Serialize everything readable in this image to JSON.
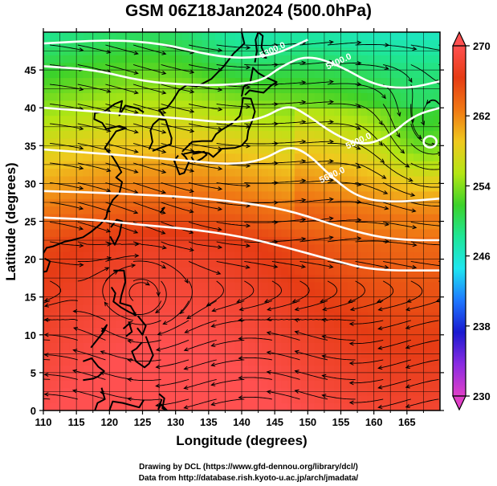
{
  "title": "GSM 06Z18Jan2024 (500.0hPa)",
  "xlabel": "Longitude (degrees)",
  "ylabel": "Latitude  (degrees)",
  "credit_line1": "Drawing by DCL (https://www.gfd-dennou.org/library/dcl/)",
  "credit_line2": "Data from http://database.rish.kyoto-u.ac.jp/arch/jmadata/",
  "chart_data": {
    "type": "heatmap",
    "field": "temperature with geopotential height contours and wind streamlines",
    "xlim": [
      110,
      170
    ],
    "ylim": [
      0,
      50
    ],
    "x_ticks": [
      "110",
      "115",
      "120",
      "125",
      "130",
      "135",
      "140",
      "145",
      "150",
      "155",
      "160",
      "165"
    ],
    "y_ticks": [
      "0",
      "5",
      "10",
      "15",
      "20",
      "25",
      "30",
      "35",
      "40",
      "45"
    ],
    "colorbar": {
      "range": [
        230,
        270
      ],
      "ticks": [
        "230",
        "238",
        "246",
        "254",
        "262",
        "270"
      ],
      "colors": [
        "#e040c8",
        "#8a2be2",
        "#1a1ad0",
        "#1e78ff",
        "#1ee6f0",
        "#1ee696",
        "#3cd22a",
        "#b4e614",
        "#f0c81e",
        "#f07814",
        "#e63c14",
        "#ff5050"
      ]
    },
    "contours": [
      {
        "label": "5300.0",
        "points": [
          [
            110,
            48.5
          ],
          [
            120,
            49
          ],
          [
            128,
            48.5
          ],
          [
            135,
            47
          ],
          [
            140,
            46.5
          ],
          [
            145,
            47
          ],
          [
            150,
            49
          ]
        ]
      },
      {
        "label": "5400.0",
        "points": [
          [
            110,
            45.5
          ],
          [
            118,
            45
          ],
          [
            125,
            43.5
          ],
          [
            132,
            43
          ],
          [
            138,
            43
          ],
          [
            143,
            43.5
          ],
          [
            146,
            45.5
          ],
          [
            150,
            47
          ],
          [
            155,
            45.5
          ],
          [
            160,
            43
          ],
          [
            165,
            42.5
          ],
          [
            170,
            43.5
          ]
        ]
      },
      {
        "label": "5500.0",
        "points": [
          [
            110,
            40
          ],
          [
            118,
            39.5
          ],
          [
            125,
            39
          ],
          [
            132,
            38.5
          ],
          [
            138,
            38
          ],
          [
            143,
            38.5
          ],
          [
            147,
            40.5
          ],
          [
            150,
            39
          ],
          [
            154,
            36.5
          ],
          [
            158,
            35
          ],
          [
            162,
            36
          ],
          [
            166,
            39
          ],
          [
            170,
            40
          ]
        ]
      },
      {
        "label": "5600.0",
        "points": [
          [
            110,
            34.5
          ],
          [
            118,
            34
          ],
          [
            125,
            33.5
          ],
          [
            132,
            33
          ],
          [
            138,
            32.5
          ],
          [
            143,
            33
          ],
          [
            147,
            35
          ],
          [
            150,
            34
          ],
          [
            154,
            30.5
          ],
          [
            158,
            28
          ],
          [
            163,
            27.5
          ],
          [
            170,
            28
          ]
        ]
      },
      {
        "label": "",
        "points": [
          [
            110,
            29
          ],
          [
            118,
            28.8
          ],
          [
            125,
            28.5
          ],
          [
            132,
            28.2
          ],
          [
            140,
            27.5
          ],
          [
            147,
            26.5
          ],
          [
            154,
            24.5
          ],
          [
            160,
            23
          ],
          [
            165,
            22.5
          ],
          [
            170,
            22.5
          ]
        ]
      },
      {
        "label": "",
        "points": [
          [
            110,
            25.5
          ],
          [
            118,
            25.2
          ],
          [
            125,
            24.5
          ],
          [
            132,
            24
          ],
          [
            140,
            23
          ],
          [
            147,
            21.5
          ],
          [
            154,
            19.8
          ],
          [
            160,
            18.5
          ],
          [
            170,
            18.5
          ]
        ]
      }
    ],
    "low_center": {
      "lon": 168.5,
      "lat": 35.5
    }
  }
}
